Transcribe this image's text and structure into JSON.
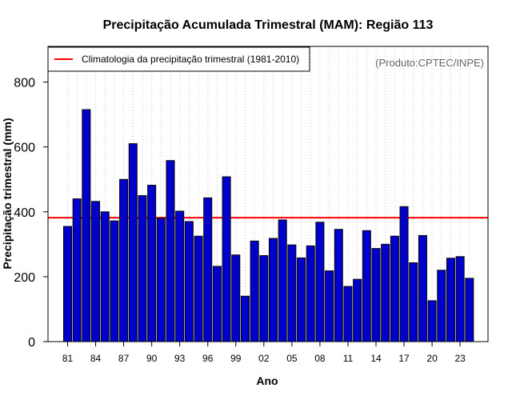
{
  "chart_data": {
    "type": "bar",
    "title": "Precipitação Acumulada Trimestral (MAM): Região 113",
    "xlabel": "Ano",
    "ylabel": "Precipitação trimestral (mm)",
    "ylim": [
      0,
      910
    ],
    "yticks": [
      0,
      200,
      400,
      600,
      800
    ],
    "ytick_labels": [
      "0",
      "200",
      "400",
      "600",
      "800"
    ],
    "categories": [
      "81",
      "82",
      "83",
      "84",
      "85",
      "86",
      "87",
      "88",
      "89",
      "90",
      "91",
      "92",
      "93",
      "94",
      "95",
      "96",
      "97",
      "98",
      "99",
      "00",
      "01",
      "02",
      "03",
      "04",
      "05",
      "06",
      "07",
      "08",
      "09",
      "10",
      "11",
      "12",
      "13",
      "14",
      "15",
      "16",
      "17",
      "18",
      "19",
      "20",
      "21",
      "22",
      "23",
      "24"
    ],
    "xtick_labels": [
      "81",
      "84",
      "87",
      "90",
      "93",
      "96",
      "99",
      "02",
      "05",
      "08",
      "11",
      "14",
      "17",
      "20",
      "23"
    ],
    "values": [
      355,
      440,
      715,
      432,
      400,
      372,
      500,
      610,
      450,
      482,
      380,
      558,
      402,
      370,
      325,
      443,
      232,
      508,
      267,
      140,
      310,
      265,
      318,
      375,
      298,
      258,
      295,
      368,
      218,
      346,
      170,
      192,
      342,
      287,
      300,
      325,
      416,
      243,
      327,
      126,
      220,
      257,
      262,
      195
    ],
    "reference_line": {
      "value": 382,
      "label": "Climatologia da precipitação trimestral (1981-2010)",
      "color": "#ff0000"
    },
    "bar_color": "#0000cd",
    "bar_edge_color": "#000000",
    "grid": "vertical-dotted",
    "legend_position": "top-left",
    "source": "(Produto:CPTEC/INPE)"
  }
}
